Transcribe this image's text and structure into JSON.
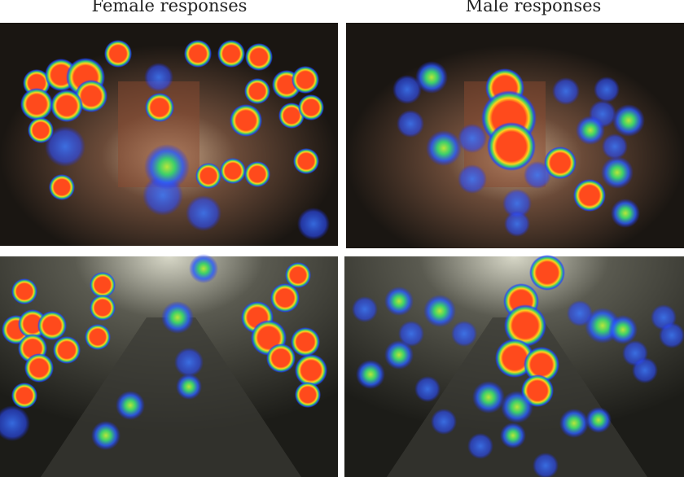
{
  "titles": {
    "female": "Female responses",
    "male": "Male responses"
  }
}
